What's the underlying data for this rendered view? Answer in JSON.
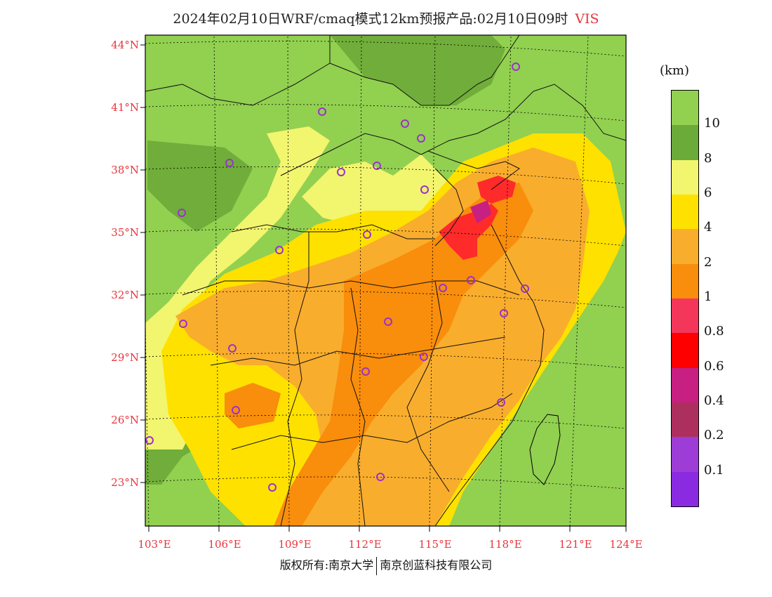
{
  "title": {
    "main": "2024年02月10日WRF/cmaq模式12km预报产品:02月10日09时",
    "variable": "VIS"
  },
  "map": {
    "lat_labels": [
      "44°N",
      "41°N",
      "38°N",
      "35°N",
      "32°N",
      "29°N",
      "26°N",
      "23°N"
    ],
    "lon_labels": [
      "103°E",
      "106°E",
      "109°E",
      "112°E",
      "115°E",
      "118°E",
      "121°E",
      "124°E"
    ],
    "colors": {
      "land_clear": "#92d050",
      "sea": "#8fcf52",
      "green_dark": "#70ad3a",
      "light_yellow": "#f2f56e",
      "yellow": "#ffe100",
      "light_orange": "#f9ad2d",
      "orange": "#f98d0c",
      "pink": "#f3365a",
      "red": "#ff0000",
      "magenta": "#c71f82",
      "purple": "#9d3cd6",
      "station_marker": "#9a32cd"
    }
  },
  "legend": {
    "unit": "(km)",
    "labels": [
      "10",
      "8",
      "6",
      "4",
      "2",
      "1",
      "0.8",
      "0.6",
      "0.4",
      "0.2",
      "0.1"
    ],
    "swatches": [
      "#92d050",
      "#6aab3a",
      "#f2f56e",
      "#ffe100",
      "#f9ad2d",
      "#f98d0c",
      "#f3365a",
      "#ff0000",
      "#c71f82",
      "#ad2f5e",
      "#9d3cd6",
      "#8a2be2"
    ]
  },
  "footer": {
    "left": "版权所有:南京大学",
    "right": "南京创蓝科技有限公司"
  }
}
